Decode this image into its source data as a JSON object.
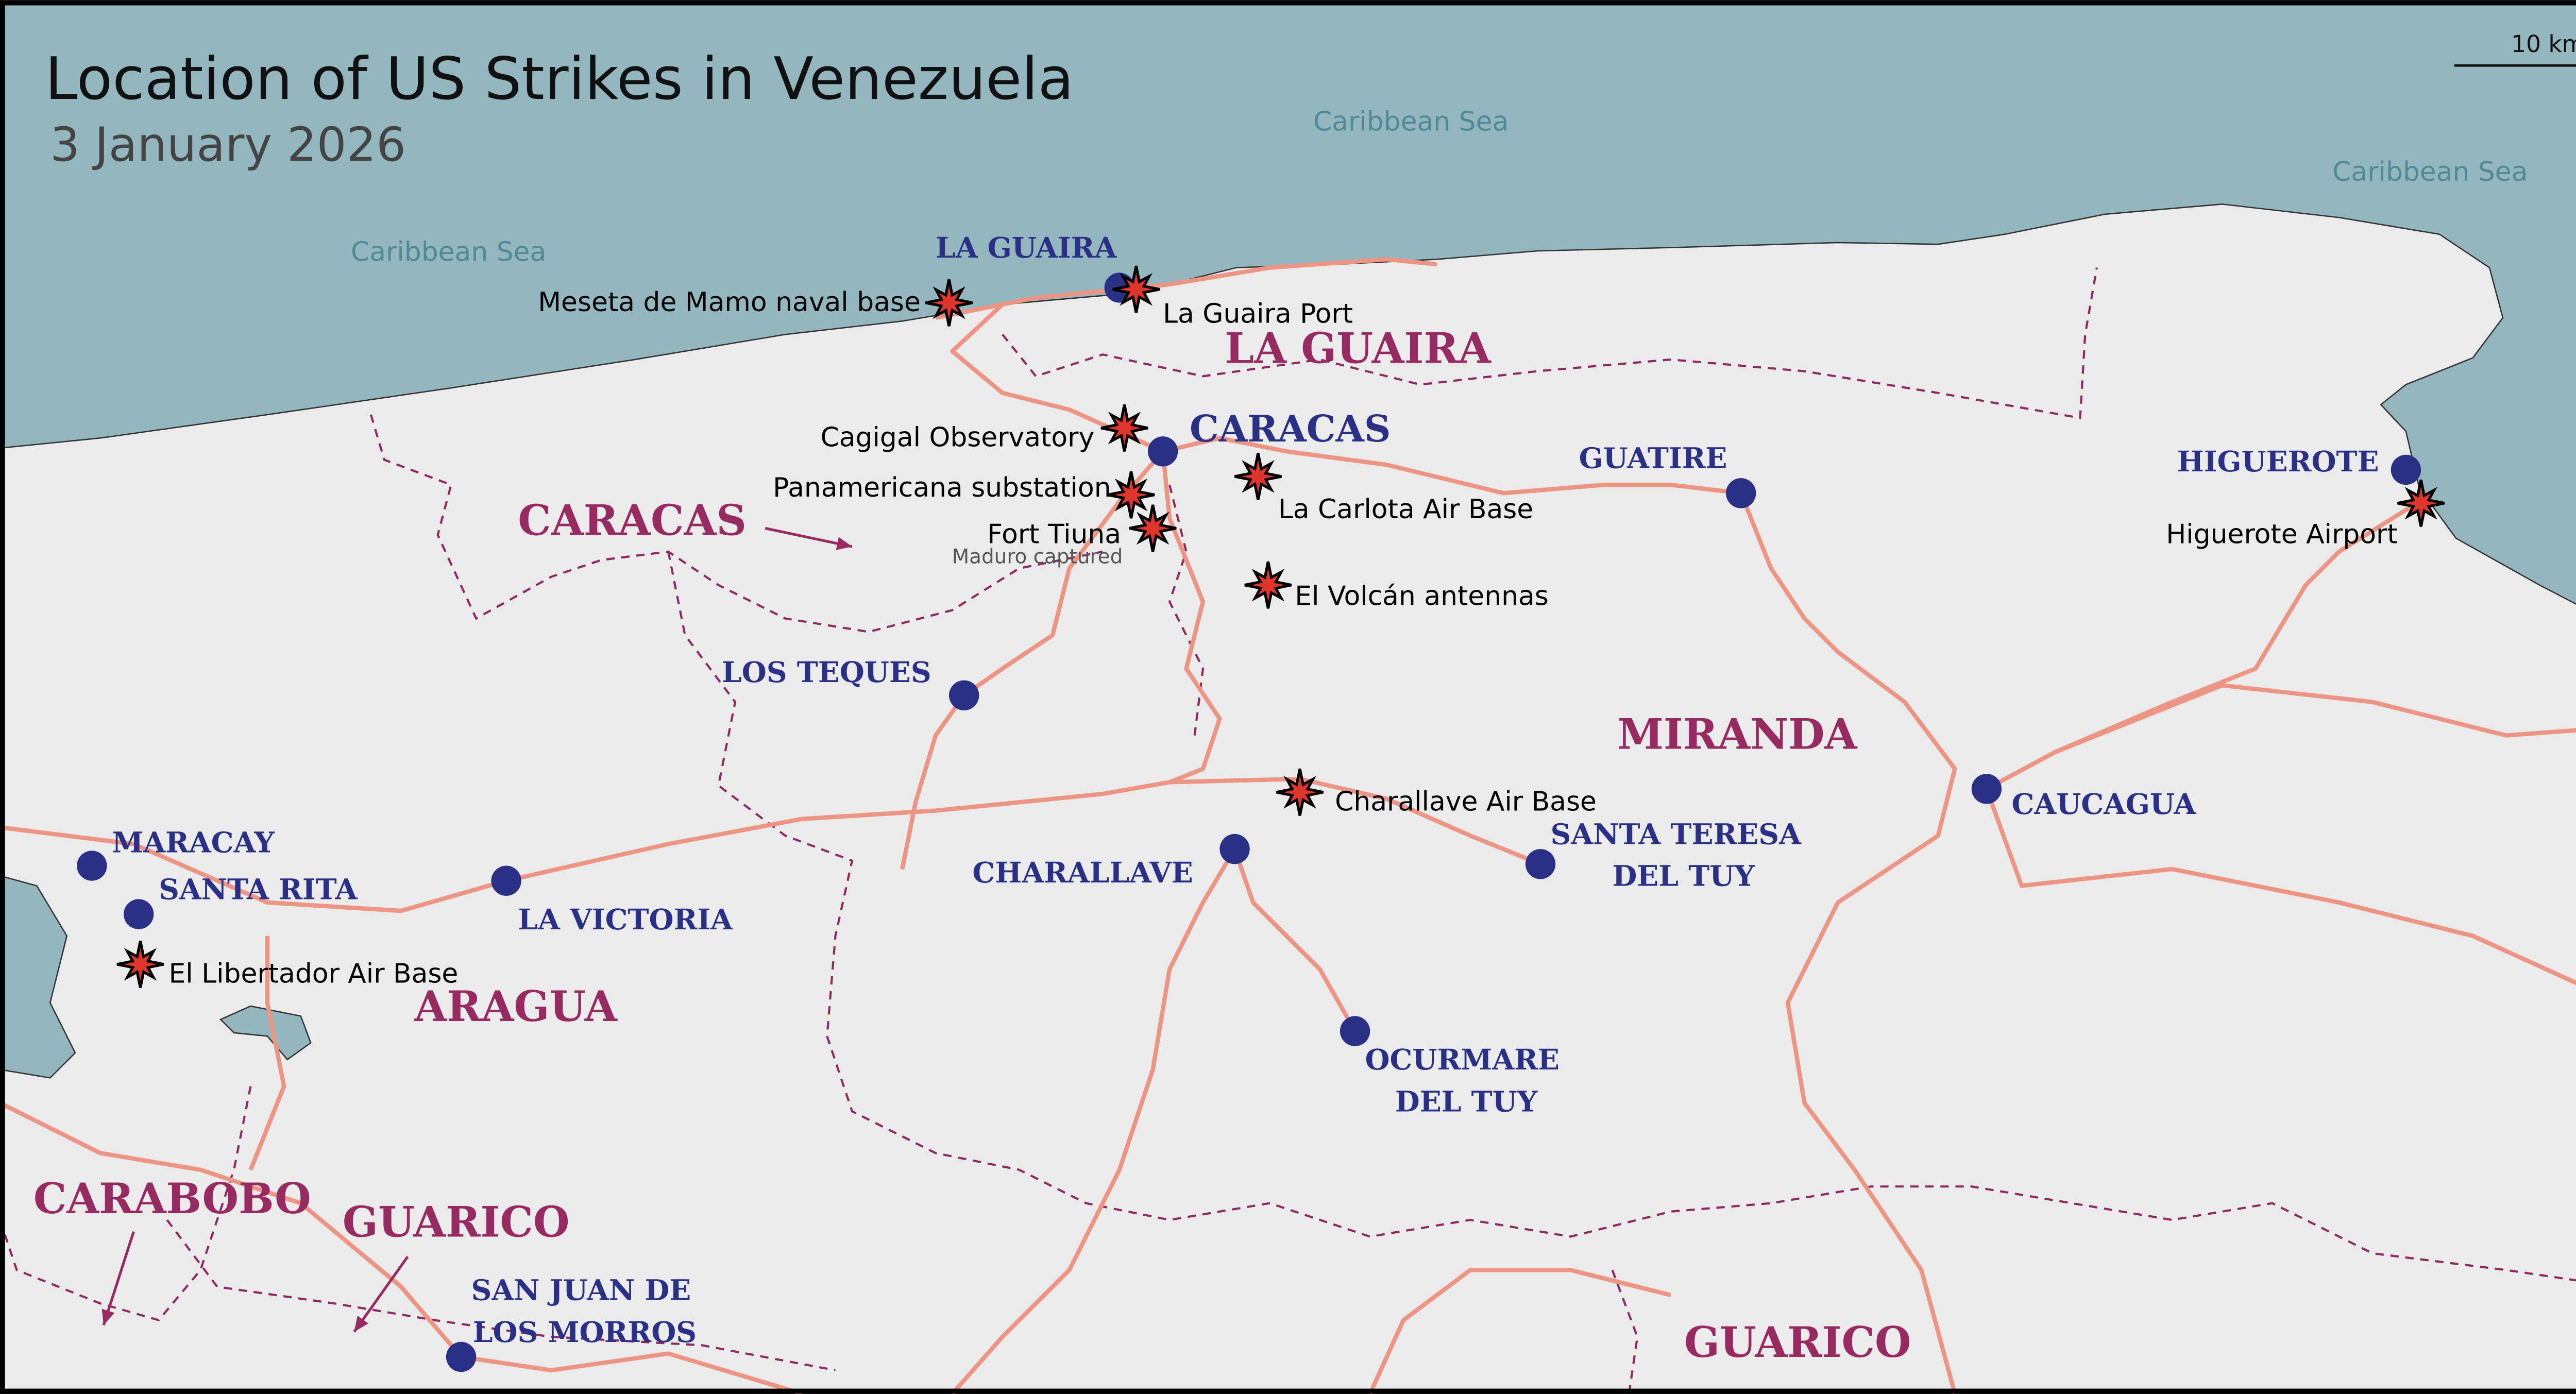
{
  "title": "Location of US Strikes in Venezuela",
  "subtitle": "3 January 2026",
  "scale_label": "10 km",
  "colors": {
    "sea": "#93b6bf",
    "land": "#ebebeb",
    "road": "#ec9584",
    "border": "#8e2a60",
    "city": "#2b3087",
    "state": "#982a62",
    "strike": "#e0352b"
  },
  "seas": [
    "Caribbean Sea",
    "Caribbean Sea",
    "Caribbean Sea"
  ],
  "cities": [
    {
      "name": "LA GUAIRA"
    },
    {
      "name": "CARACAS"
    },
    {
      "name": "LOS TEQUES"
    },
    {
      "name": "GUATIRE"
    },
    {
      "name": "HIGUEROTE"
    },
    {
      "name": "MARACAY"
    },
    {
      "name": "SANTA RITA"
    },
    {
      "name": "LA VICTORIA"
    },
    {
      "name": "CHARALLAVE"
    },
    {
      "name": "SANTA TERESA",
      "name2": "DEL TUY"
    },
    {
      "name": "CAUCAGUA"
    },
    {
      "name": "OCURMARE",
      "name2": "DEL TUY"
    },
    {
      "name": "SAN JUAN DE",
      "name2": "LOS MORROS"
    }
  ],
  "states": [
    "LA GUAIRA",
    "CARACAS",
    "MIRANDA",
    "ARAGUA",
    "CARABOBO",
    "GUARICO",
    "GUARICO"
  ],
  "strikes": [
    {
      "name": "Meseta de Mamo naval base"
    },
    {
      "name": "La Guaira Port"
    },
    {
      "name": "Cagigal Observatory"
    },
    {
      "name": "Panamericana substation"
    },
    {
      "name": "Fort Tiuna",
      "note": "Maduro captured"
    },
    {
      "name": "La Carlota Air Base"
    },
    {
      "name": "El Volcán antennas"
    },
    {
      "name": "Charallave Air Base"
    },
    {
      "name": "Higuerote Airport"
    },
    {
      "name": "El Libertador Air Base"
    }
  ]
}
